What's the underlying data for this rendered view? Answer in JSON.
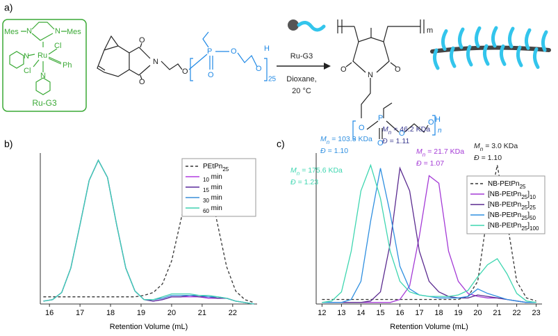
{
  "panels": {
    "a": "a)",
    "b": "b)",
    "c": "c)"
  },
  "scheme": {
    "catalyst": {
      "atoms": [
        "Mes",
        "N",
        "N",
        "Mes",
        "Cl",
        "Ru",
        "Cl",
        "Ph",
        "N",
        "N"
      ],
      "label": "Ru-G3"
    },
    "monomer": {
      "atoms": [
        "O",
        "O",
        "N",
        "O",
        "P",
        "O",
        "O",
        "O",
        "H",
        "25"
      ]
    },
    "conditions": {
      "reagent": "Ru-G3",
      "solvent": "Dioxane,",
      "temperature": "20 °C"
    },
    "product": {
      "atoms": [
        "m",
        "O",
        "O",
        "N",
        "O",
        "P",
        "O",
        "O",
        "O",
        "H",
        "n"
      ]
    }
  },
  "chart_data": [
    {
      "type": "line",
      "xlabel": "Retention Volume (mL)",
      "xlim": [
        15.7,
        22.8
      ],
      "xticks": [
        16,
        17,
        18,
        19,
        20,
        21,
        22
      ],
      "ylim": [
        0,
        1.05
      ],
      "legend": "top-right",
      "x": [
        15.8,
        16.1,
        16.4,
        16.7,
        17.0,
        17.3,
        17.6,
        17.9,
        18.2,
        18.5,
        18.8,
        19.1,
        19.4,
        19.7,
        20.0,
        20.3,
        20.6,
        20.9,
        21.2,
        21.5,
        21.8,
        22.1,
        22.4,
        22.7
      ],
      "series": [
        {
          "name": "PEtPn25",
          "color": "#333333",
          "dashed": true,
          "values": [
            0.05,
            0.05,
            0.05,
            0.05,
            0.05,
            0.05,
            0.05,
            0.05,
            0.05,
            0.05,
            0.05,
            0.06,
            0.08,
            0.14,
            0.3,
            0.58,
            0.86,
            0.97,
            0.86,
            0.56,
            0.26,
            0.09,
            0.03,
            0.01
          ]
        },
        {
          "name": "10 min",
          "color": "#b03de0",
          "values": [
            0.02,
            0.03,
            0.08,
            0.25,
            0.55,
            0.86,
            1.0,
            0.88,
            0.55,
            0.25,
            0.09,
            0.03,
            0.02,
            0.03,
            0.05,
            0.05,
            0.05,
            0.05,
            0.04,
            0.04,
            0.04,
            0.02,
            0.01,
            0.0
          ]
        },
        {
          "name": "15 min",
          "color": "#5a2a9b",
          "values": [
            0.02,
            0.03,
            0.08,
            0.25,
            0.55,
            0.86,
            1.0,
            0.88,
            0.55,
            0.25,
            0.09,
            0.03,
            0.02,
            0.03,
            0.05,
            0.05,
            0.06,
            0.05,
            0.05,
            0.04,
            0.04,
            0.02,
            0.01,
            0.0
          ]
        },
        {
          "name": "30 min",
          "color": "#3a8fd9",
          "values": [
            0.02,
            0.03,
            0.08,
            0.25,
            0.55,
            0.86,
            1.0,
            0.88,
            0.55,
            0.25,
            0.09,
            0.03,
            0.03,
            0.04,
            0.06,
            0.06,
            0.06,
            0.06,
            0.05,
            0.05,
            0.04,
            0.02,
            0.01,
            0.0
          ]
        },
        {
          "name": "60 min",
          "color": "#3fd0b0",
          "values": [
            0.02,
            0.03,
            0.08,
            0.25,
            0.55,
            0.86,
            1.0,
            0.88,
            0.55,
            0.25,
            0.09,
            0.03,
            0.03,
            0.05,
            0.07,
            0.07,
            0.07,
            0.06,
            0.06,
            0.05,
            0.04,
            0.02,
            0.01,
            0.0
          ]
        }
      ]
    },
    {
      "type": "line",
      "xlabel": "Retention Volume (mL)",
      "xlim": [
        11.7,
        23.3
      ],
      "xticks": [
        12,
        13,
        14,
        15,
        16,
        17,
        18,
        19,
        20,
        21,
        22,
        23
      ],
      "ylim": [
        0,
        1.0
      ],
      "legend": "right",
      "x": [
        12,
        12.5,
        13,
        13.5,
        14,
        14.5,
        15,
        15.5,
        16,
        16.5,
        17,
        17.5,
        18,
        18.5,
        19,
        19.5,
        20,
        20.5,
        21,
        21.5,
        22,
        22.5,
        23
      ],
      "series": [
        {
          "name": "NB-PEtPn25",
          "color": "#333333",
          "dashed": true,
          "values": [
            0.03,
            0.03,
            0.03,
            0.03,
            0.03,
            0.03,
            0.03,
            0.03,
            0.03,
            0.03,
            0.03,
            0.03,
            0.03,
            0.03,
            0.03,
            0.05,
            0.15,
            0.6,
            0.92,
            0.55,
            0.15,
            0.04,
            0.02
          ]
        },
        {
          "name": "[NB-PEtPn25]10",
          "color": "#a43ad6",
          "values": [
            0.01,
            0.01,
            0.01,
            0.01,
            0.01,
            0.01,
            0.01,
            0.01,
            0.03,
            0.12,
            0.45,
            0.85,
            0.8,
            0.35,
            0.15,
            0.07,
            0.05,
            0.04,
            0.04,
            0.03,
            0.02,
            0.01,
            0.01
          ]
        },
        {
          "name": "[NB-PEtPn25]25",
          "color": "#5a2a8f",
          "values": [
            0.01,
            0.01,
            0.01,
            0.01,
            0.01,
            0.02,
            0.08,
            0.4,
            0.9,
            0.75,
            0.35,
            0.15,
            0.08,
            0.05,
            0.04,
            0.04,
            0.06,
            0.05,
            0.04,
            0.03,
            0.02,
            0.01,
            0.01
          ]
        },
        {
          "name": "[NB-PEtPn25]50",
          "color": "#2f8fe0",
          "values": [
            0.01,
            0.01,
            0.01,
            0.03,
            0.15,
            0.55,
            0.9,
            0.6,
            0.25,
            0.1,
            0.06,
            0.05,
            0.04,
            0.04,
            0.04,
            0.05,
            0.1,
            0.07,
            0.05,
            0.03,
            0.02,
            0.01,
            0.01
          ]
        },
        {
          "name": "[NB-PEtPn25]100",
          "color": "#3ed6b0",
          "values": [
            0.01,
            0.02,
            0.08,
            0.35,
            0.75,
            0.92,
            0.7,
            0.35,
            0.15,
            0.08,
            0.06,
            0.05,
            0.05,
            0.05,
            0.06,
            0.09,
            0.18,
            0.26,
            0.3,
            0.2,
            0.07,
            0.02,
            0.01
          ]
        }
      ],
      "mn_symbol": "M",
      "mn_subscript": "n",
      "dispersity_symbol": "Đ",
      "annotations": [
        {
          "mn": "= 175.6 KDa",
          "dispersity": "= 1.23",
          "color": "#3ed6b0"
        },
        {
          "mn": "= 103.3 KDa",
          "dispersity": "= 1.10",
          "color": "#2f8fe0"
        },
        {
          "mn": "= 46.2 KDa",
          "dispersity": "= 1.11",
          "color": "#3a3a8f"
        },
        {
          "mn": "= 21.7 KDa",
          "dispersity": "= 1.07",
          "color": "#a43ad6"
        },
        {
          "mn": "= 3.0 KDa",
          "dispersity": "= 1.10",
          "color": "#222222"
        }
      ]
    }
  ]
}
